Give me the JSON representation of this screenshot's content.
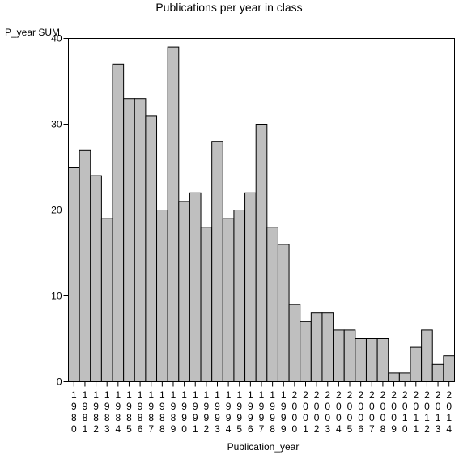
{
  "chart_data": {
    "type": "bar",
    "title": "Publications per year in class",
    "ylabel": "P_year SUM",
    "xlabel": "Publication_year",
    "categories": [
      "1980",
      "1981",
      "1982",
      "1983",
      "1984",
      "1985",
      "1986",
      "1987",
      "1988",
      "1989",
      "1990",
      "1991",
      "1992",
      "1993",
      "1994",
      "1995",
      "1996",
      "1997",
      "1998",
      "1999",
      "2000",
      "2001",
      "2002",
      "2003",
      "2004",
      "2005",
      "2006",
      "2007",
      "2008",
      "2009",
      "2010",
      "2011",
      "2012",
      "2013",
      "2014"
    ],
    "values": [
      25,
      27,
      24,
      19,
      37,
      33,
      33,
      31,
      20,
      39,
      21,
      22,
      18,
      28,
      19,
      20,
      22,
      30,
      18,
      16,
      9,
      7,
      8,
      8,
      6,
      6,
      5,
      5,
      5,
      1,
      1,
      4,
      6,
      2,
      3
    ],
    "ylim": [
      0,
      40
    ],
    "yticks": [
      0,
      10,
      20,
      30,
      40
    ],
    "grid": false,
    "bar_color": "#bfbfbf"
  }
}
